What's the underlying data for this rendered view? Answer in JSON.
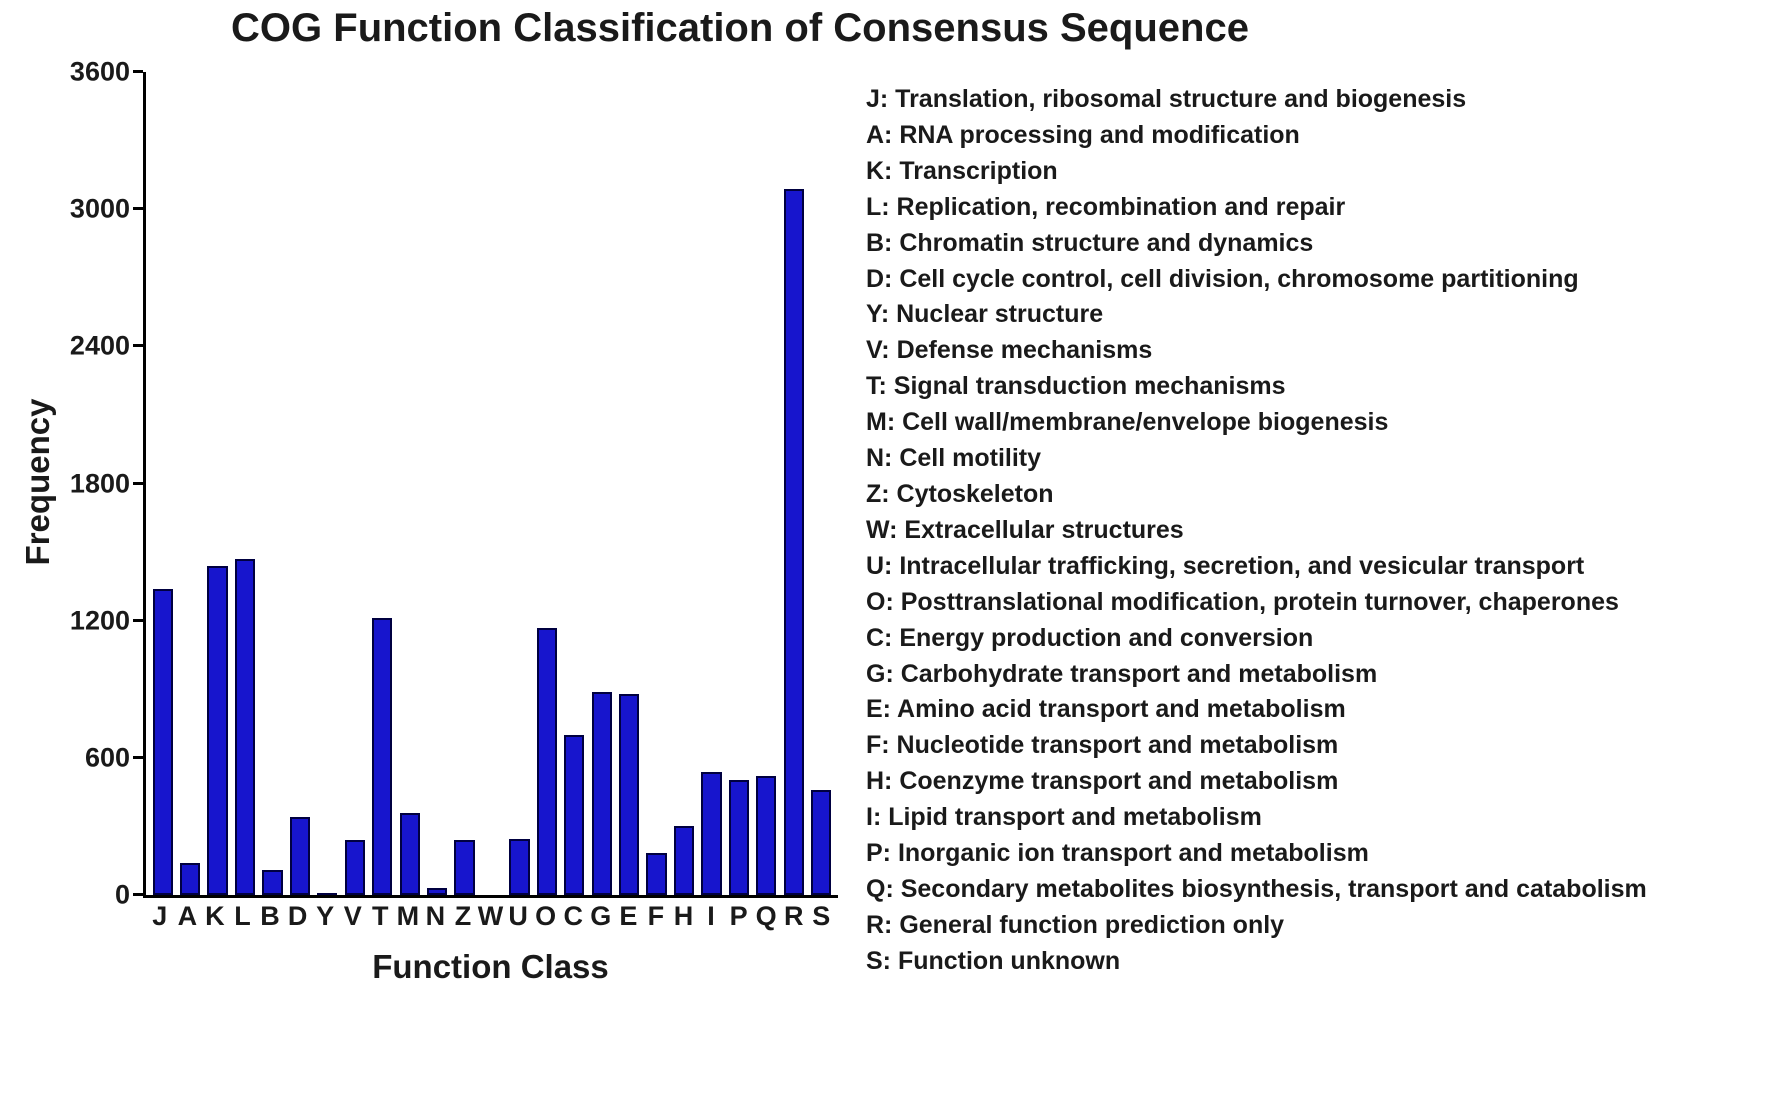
{
  "title": "COG Function Classification of Consensus Sequence",
  "chart_data": {
    "type": "bar",
    "title": "COG Function Classification of Consensus Sequence",
    "xlabel": "Function Class",
    "ylabel": "Frequency",
    "ylim": [
      0,
      3600
    ],
    "yticks": [
      0,
      600,
      1200,
      1800,
      2400,
      3000,
      3600
    ],
    "grid": false,
    "legend_position": "right",
    "bar_color": "#1715cd",
    "bar_border": "#000040",
    "categories": [
      "J",
      "A",
      "K",
      "L",
      "B",
      "D",
      "Y",
      "V",
      "T",
      "M",
      "N",
      "Z",
      "W",
      "U",
      "O",
      "C",
      "G",
      "E",
      "F",
      "H",
      "I",
      "P",
      "Q",
      "R",
      "S"
    ],
    "values": [
      1340,
      140,
      1440,
      1470,
      110,
      340,
      10,
      240,
      1210,
      360,
      30,
      240,
      0,
      245,
      1170,
      700,
      890,
      880,
      185,
      300,
      540,
      505,
      520,
      3090,
      460
    ]
  },
  "legend": {
    "items": [
      "J: Translation, ribosomal structure and biogenesis",
      "A: RNA processing and modification",
      "K: Transcription",
      "L: Replication, recombination and repair",
      "B: Chromatin structure and dynamics",
      "D: Cell cycle control, cell division, chromosome partitioning",
      "Y: Nuclear structure",
      "V: Defense mechanisms",
      "T: Signal transduction mechanisms",
      "M: Cell wall/membrane/envelope biogenesis",
      "N: Cell motility",
      "Z: Cytoskeleton",
      "W: Extracellular structures",
      "U: Intracellular trafficking, secretion, and vesicular transport",
      "O: Posttranslational modification, protein turnover, chaperones",
      "C: Energy production and conversion",
      "G: Carbohydrate transport and metabolism",
      "E: Amino acid transport and metabolism",
      "F: Nucleotide transport and metabolism",
      "H: Coenzyme transport and metabolism",
      "I: Lipid transport and metabolism",
      "P: Inorganic ion transport and metabolism",
      "Q: Secondary metabolites biosynthesis, transport and catabolism",
      "R: General function prediction only",
      "S: Function unknown"
    ]
  }
}
